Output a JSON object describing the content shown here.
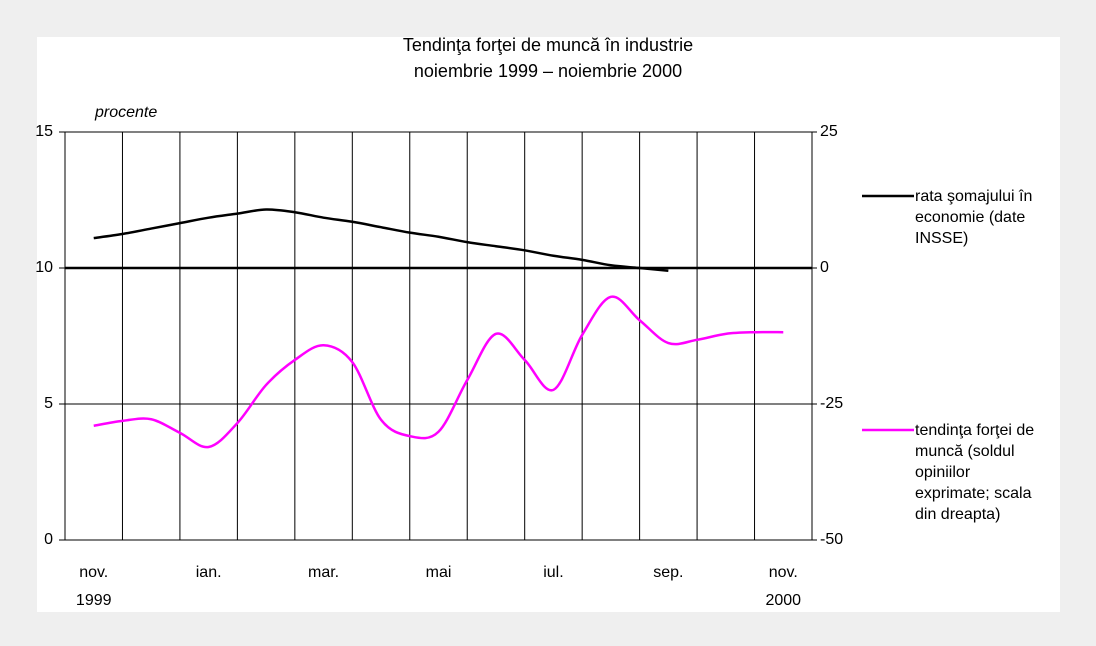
{
  "chart_data": {
    "type": "line",
    "title": "Tendinţa forţei de muncă în industrie",
    "subtitle": "noiembrie 1999 – noiembrie 2000",
    "ylabel": "procente",
    "categories": [
      "nov.",
      null,
      "ian.",
      null,
      "mar.",
      null,
      "mai",
      null,
      "iul.",
      null,
      "sep.",
      null,
      "nov."
    ],
    "start_year": "1999",
    "end_year": "2000",
    "xlim": [
      -0.5,
      12.5
    ],
    "x": [
      0,
      0.5,
      1,
      1.5,
      2,
      2.5,
      3,
      3.5,
      4,
      4.5,
      5,
      5.5,
      6,
      6.5,
      7,
      7.5,
      8,
      8.5,
      9,
      9.5,
      10,
      10.5,
      11,
      11.5,
      12
    ],
    "ylim": [
      0,
      15
    ],
    "yticks": [
      0,
      5,
      10,
      15
    ],
    "y2lim": [
      -50,
      25
    ],
    "y2ticks": [
      -50,
      -25,
      0,
      25
    ],
    "grid": true,
    "series": [
      {
        "name": "rata şomajului în economie (date INSSE)",
        "color": "#000000",
        "axis": "y",
        "values": [
          11.1,
          11.25,
          11.45,
          11.65,
          11.85,
          12.0,
          12.15,
          12.05,
          11.85,
          11.7,
          11.5,
          11.3,
          11.15,
          10.95,
          10.8,
          10.65,
          10.45,
          10.3,
          10.1,
          10.0,
          9.9,
          null,
          null,
          null,
          null
        ]
      },
      {
        "name": "tendinţa forţei de muncă (soldul opiniilor exprimate; scala din dreapta)",
        "color": "#ff00ff",
        "axis": "y2",
        "values": [
          -29,
          -28.1,
          -27.8,
          -30.3,
          -32.9,
          -28.5,
          -21.5,
          -16.9,
          -14.2,
          -17.3,
          -27.9,
          -30.9,
          -30.1,
          -20.6,
          -12.1,
          -16.9,
          -22.4,
          -12.3,
          -5.3,
          -9.6,
          -13.8,
          -13.2,
          -12.1,
          -11.8,
          -11.8
        ]
      }
    ]
  }
}
